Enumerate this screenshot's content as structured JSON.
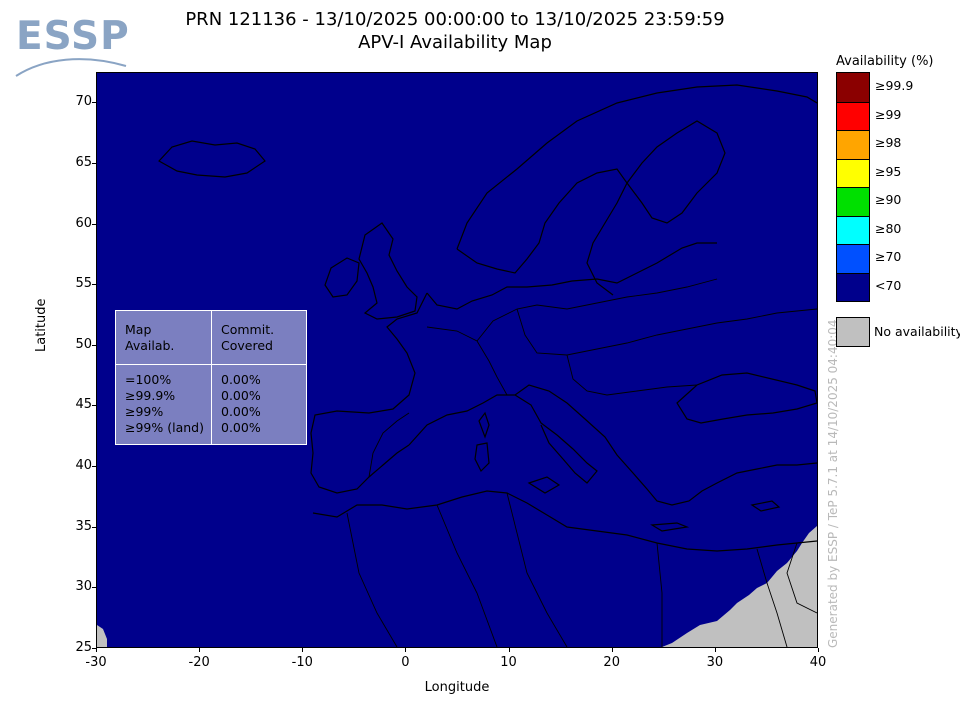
{
  "logo": {
    "text": "ESSP"
  },
  "title": {
    "line1": "PRN 121136 - 13/10/2025 00:00:00 to 13/10/2025 23:59:59",
    "line2": "APV-I Availability Map"
  },
  "axes": {
    "xlabel": "Longitude",
    "ylabel": "Latitude",
    "xlim": [
      -30,
      40
    ],
    "ylim": [
      25,
      72.5
    ],
    "xticks": [
      "-30",
      "-20",
      "-10",
      "0",
      "10",
      "20",
      "30",
      "40"
    ],
    "yticks": [
      "70",
      "65",
      "60",
      "55",
      "50",
      "45",
      "40",
      "35",
      "30",
      "25"
    ]
  },
  "map": {
    "background_color": "#00008c",
    "no_availability_color": "#c0c0c0",
    "coastline_color": "#000000"
  },
  "stats_table": {
    "header_left": "Map\nAvailab.",
    "header_right": "Commit.\nCovered",
    "rows_left": "=100%\n≥99.9%\n≥99%\n≥99% (land)",
    "rows_right": "0.00%\n0.00%\n0.00%\n0.00%"
  },
  "legend": {
    "title": "Availability (%)",
    "items": [
      {
        "label": "≥99.9",
        "color": "#8b0000"
      },
      {
        "label": "≥99",
        "color": "#ff0000"
      },
      {
        "label": "≥98",
        "color": "#ffa500"
      },
      {
        "label": "≥95",
        "color": "#ffff00"
      },
      {
        "label": "≥90",
        "color": "#00e000"
      },
      {
        "label": "≥80",
        "color": "#00ffff"
      },
      {
        "label": "≥70",
        "color": "#0050ff"
      },
      {
        "label": "<70",
        "color": "#00008c"
      }
    ],
    "no_availability_label": "No availability"
  },
  "watermark": "Generated by ESSP / TeP 5.7.1 at 14/10/2025 04:40:04"
}
